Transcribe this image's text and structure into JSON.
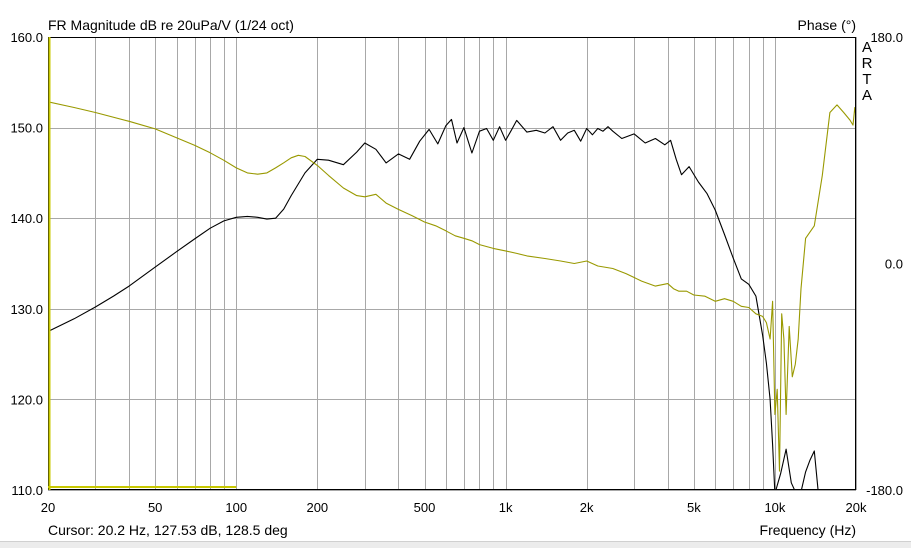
{
  "title": "FR Magnitude dB re 20uPa/V (1/24 oct)",
  "phase_label": "Phase (°)",
  "brand": [
    "A",
    "R",
    "T",
    "A"
  ],
  "cursor_text": "Cursor: 20.2 Hz, 127.53 dB, 128.5 deg",
  "x_label": "Frequency (Hz)",
  "chart_data": {
    "type": "line",
    "title": "FR Magnitude dB re 20uPa/V (1/24 oct)",
    "xlabel": "Frequency (Hz)",
    "ylabel": "",
    "y2label": "Phase (°)",
    "xscale": "log",
    "xlim": [
      20,
      20000
    ],
    "ylim": [
      110,
      160
    ],
    "y2lim": [
      -180,
      180
    ],
    "grid": true,
    "x_ticks": [
      20,
      50,
      100,
      200,
      500,
      1000,
      2000,
      5000,
      10000,
      20000
    ],
    "x_tick_labels": [
      "20",
      "50",
      "100",
      "200",
      "500",
      "1k",
      "2k",
      "5k",
      "10k",
      "20k"
    ],
    "y_ticks": [
      160,
      150,
      140,
      130,
      120,
      110
    ],
    "y_tick_labels": [
      "160.0",
      "150.0",
      "140.0",
      "130.0",
      "120.0",
      "110.0"
    ],
    "y2_ticks": [
      180,
      0,
      -180
    ],
    "y2_tick_labels": [
      "180.0",
      "0.0",
      "-180.0"
    ],
    "colors": {
      "magnitude": "#000000",
      "phase": "#999900",
      "grid": "#a8a8a8",
      "cursor": "#c8c800"
    },
    "series": [
      {
        "axis": "left",
        "x": [
          20,
          25,
          30,
          35,
          40,
          50,
          60,
          70,
          80,
          90,
          100,
          110,
          120,
          130,
          140,
          150,
          160,
          180,
          200,
          220,
          250,
          280,
          300,
          330,
          360,
          400,
          440,
          480,
          520,
          560,
          600,
          630,
          660,
          700,
          750,
          800,
          850,
          900,
          950,
          1000,
          1050,
          1100,
          1200,
          1300,
          1400,
          1500,
          1600,
          1700,
          1800,
          1900,
          2000,
          2100,
          2200,
          2300,
          2400,
          2500,
          2700,
          3000,
          3300,
          3600,
          3900,
          4100,
          4300,
          4500,
          4800,
          5200,
          5600,
          6000,
          6500,
          7000,
          7500,
          8000,
          8500,
          9000,
          9300,
          9600,
          9800,
          10000,
          10200,
          10500,
          11000,
          11500,
          12000,
          12500,
          13000,
          13500,
          14000,
          14500
        ],
        "y": [
          127.5,
          128.9,
          130.2,
          131.4,
          132.5,
          134.6,
          136.3,
          137.7,
          138.9,
          139.7,
          140.1,
          140.2,
          140.1,
          139.9,
          140.0,
          141.0,
          142.5,
          145.0,
          146.5,
          146.4,
          145.9,
          147.3,
          148.3,
          147.6,
          146.1,
          147.1,
          146.5,
          148.5,
          149.8,
          148.2,
          150.2,
          150.9,
          148.3,
          150.0,
          147.2,
          149.6,
          149.9,
          148.6,
          150.1,
          148.6,
          149.7,
          150.8,
          149.5,
          149.7,
          149.4,
          150.1,
          148.6,
          149.4,
          149.7,
          148.5,
          149.9,
          149.2,
          149.9,
          149.6,
          150.1,
          149.6,
          148.8,
          149.3,
          148.3,
          148.8,
          148.1,
          148.6,
          146.5,
          144.8,
          145.7,
          144.0,
          142.7,
          140.9,
          138.2,
          135.6,
          133.3,
          132.7,
          131.4,
          127.1,
          124.0,
          120.0,
          115.0,
          109.6,
          110.5,
          111.8,
          114.5,
          110.8,
          109.6,
          109.8,
          112.0,
          113.3,
          114.3,
          109.6
        ]
      },
      {
        "axis": "right",
        "x": [
          20,
          25,
          30,
          40,
          50,
          60,
          70,
          80,
          90,
          100,
          110,
          120,
          130,
          140,
          150,
          160,
          170,
          180,
          200,
          220,
          250,
          280,
          300,
          330,
          360,
          400,
          450,
          500,
          550,
          600,
          650,
          700,
          750,
          800,
          900,
          1000,
          1100,
          1200,
          1400,
          1600,
          1800,
          2000,
          2200,
          2500,
          2800,
          3200,
          3600,
          4000,
          4200,
          4400,
          4700,
          5000,
          5500,
          6000,
          6500,
          7000,
          7500,
          8000,
          8500,
          9000,
          9300,
          9600,
          9800,
          10000,
          10200,
          10400,
          10600,
          10800,
          11000,
          11300,
          11600,
          11900,
          12200,
          12500,
          13000,
          14000,
          15000,
          16000,
          17000,
          18000,
          19000,
          19500,
          19800,
          20000
        ],
        "y": [
          128.5,
          124,
          120,
          113,
          107,
          100,
          94,
          88,
          82,
          76,
          72,
          71,
          72,
          76,
          80,
          84,
          86,
          85,
          78,
          70,
          60,
          54,
          53,
          55,
          48,
          43,
          38,
          33,
          30,
          26,
          22,
          20,
          18,
          15,
          12,
          10,
          8,
          6,
          4,
          2,
          0,
          2,
          -2,
          -4,
          -8,
          -14,
          -18,
          -16,
          -20,
          -22,
          -22,
          -25,
          -26,
          -30,
          -28,
          -30,
          -34,
          -35,
          -40,
          -42,
          -47,
          -60,
          -30,
          -120,
          -100,
          -165,
          -40,
          -60,
          -120,
          -50,
          -90,
          -80,
          -60,
          -20,
          20,
          30,
          70,
          120,
          126,
          120,
          114,
          110,
          124,
          117
        ]
      }
    ]
  }
}
